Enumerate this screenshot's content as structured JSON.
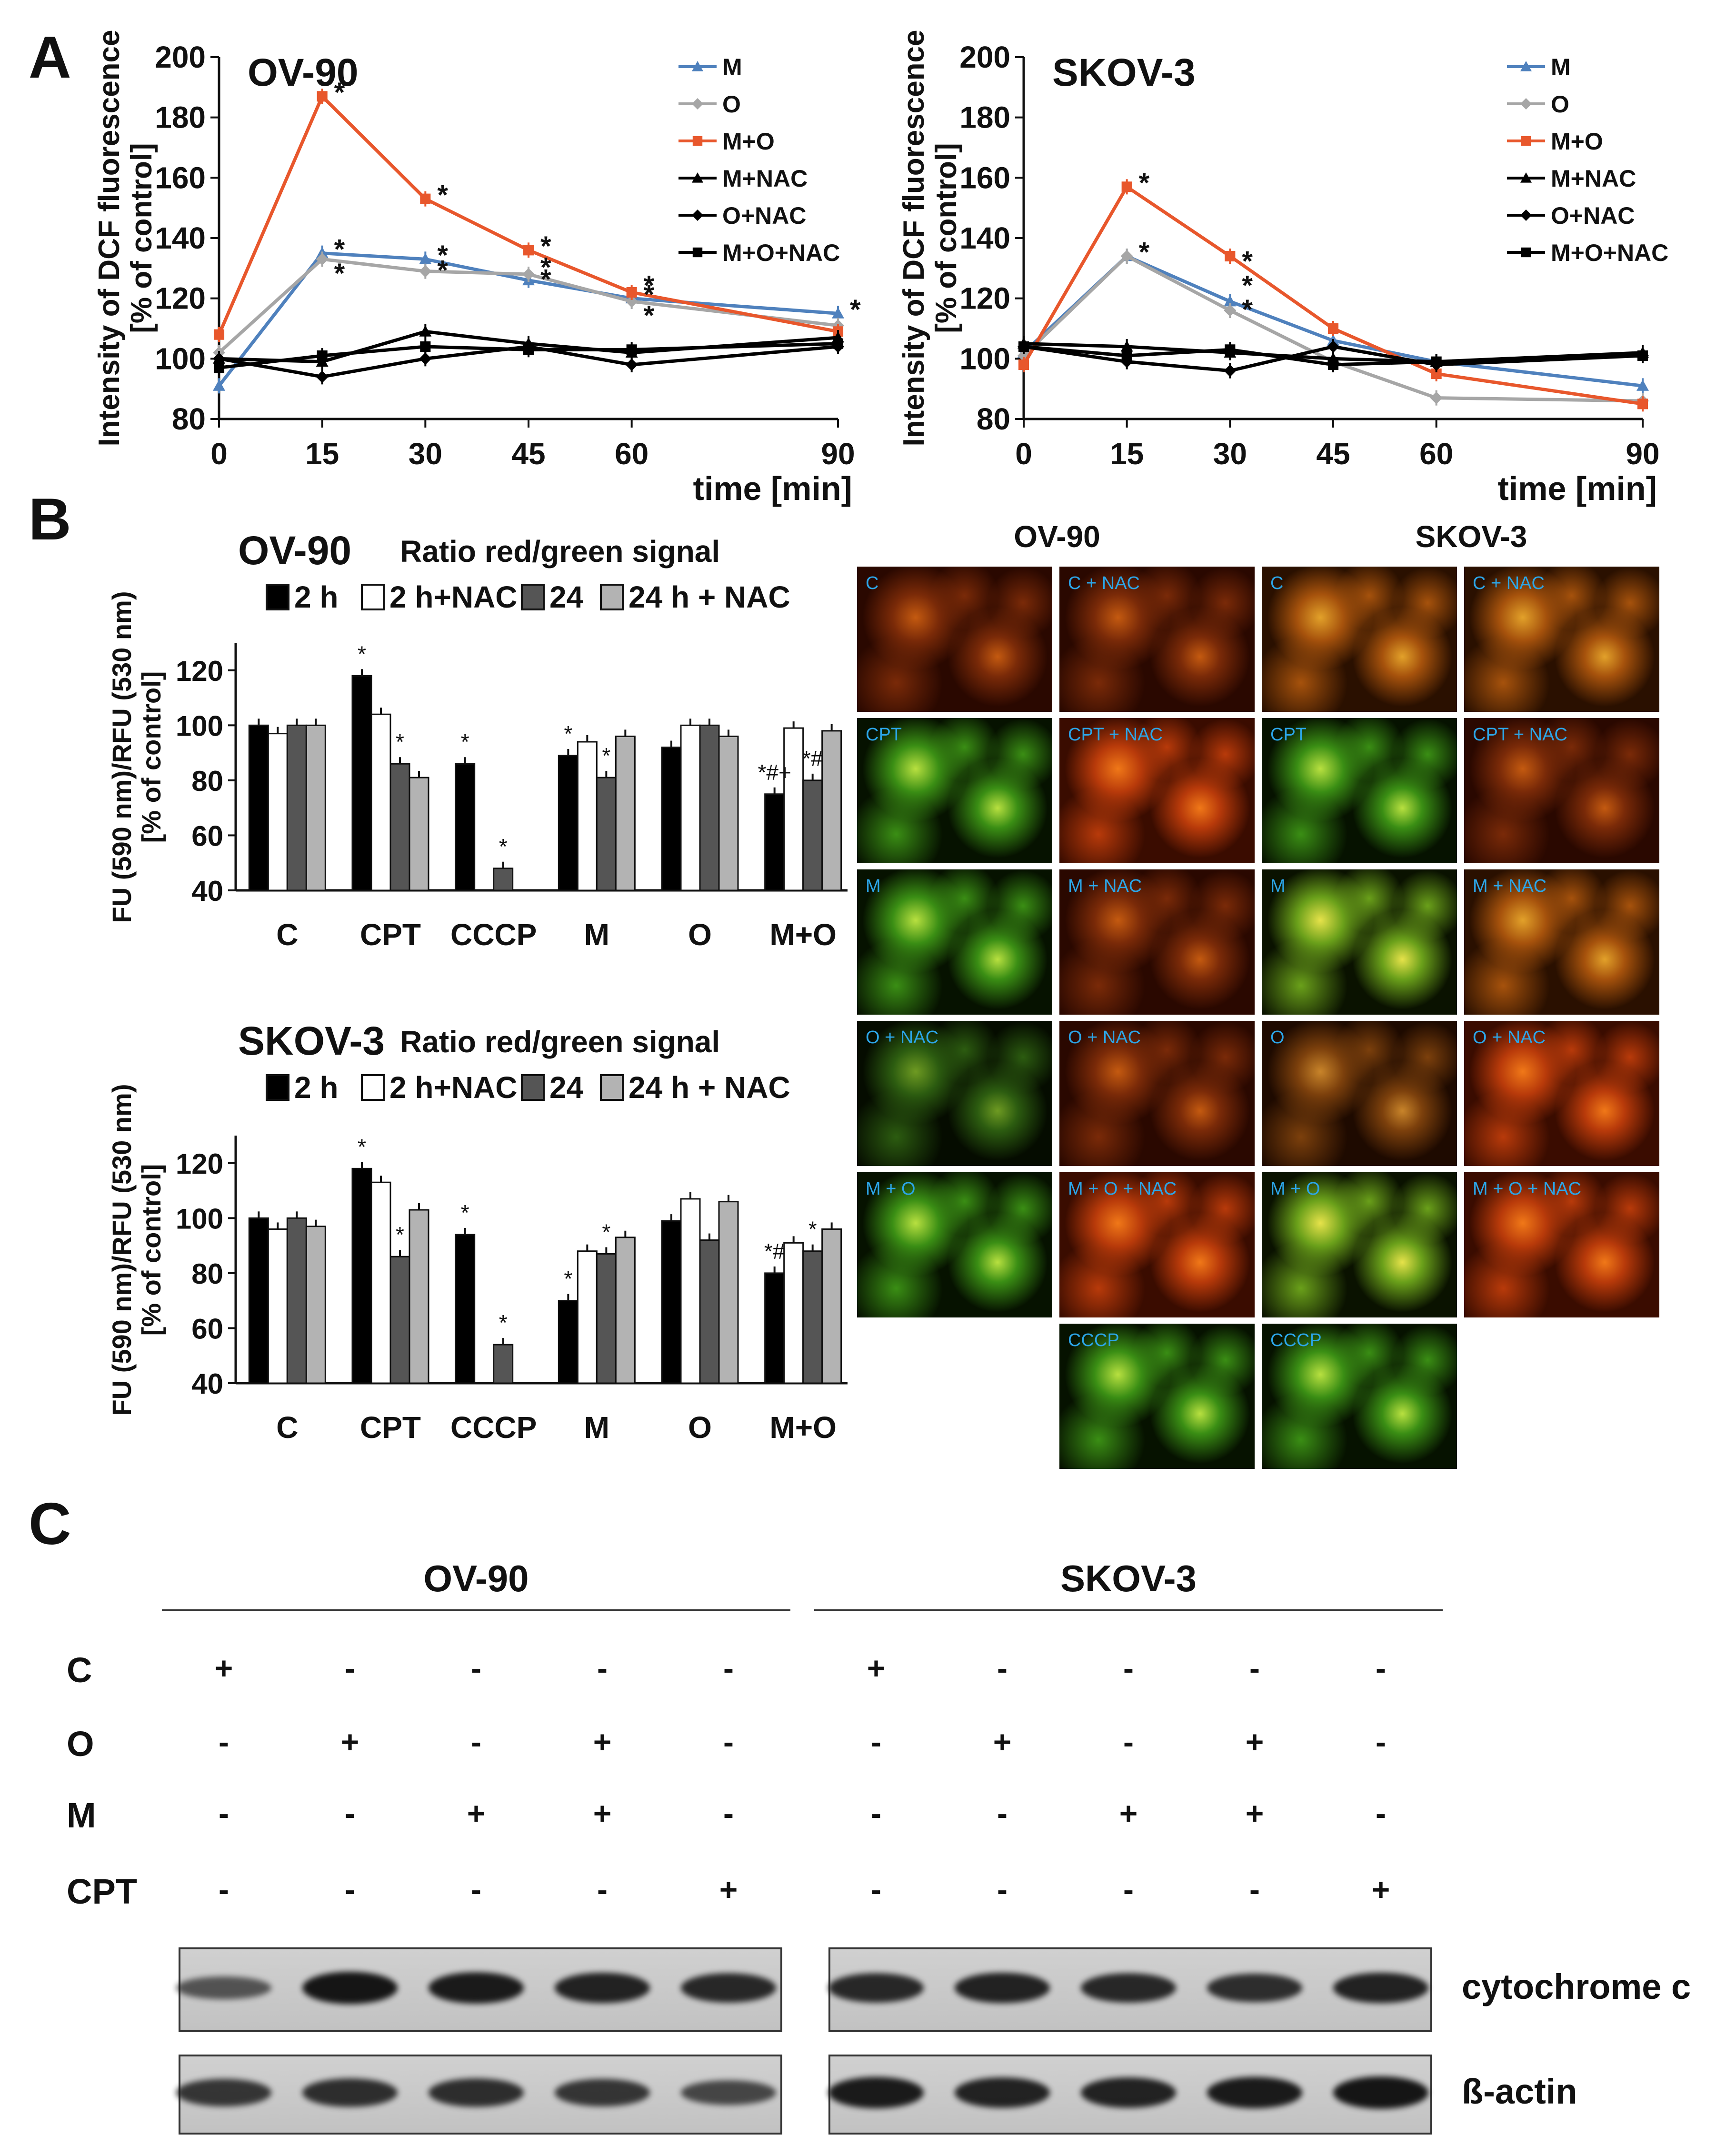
{
  "panels": {
    "a": "A",
    "b": "B",
    "c": "C"
  },
  "colors": {
    "M": "#4f81bd",
    "O": "#a6a6a6",
    "MO": "#e8572c",
    "black": "#000000",
    "dark": "#555555",
    "light": "#b3b3b3",
    "caption": "#2ca6e8"
  },
  "chart_data": [
    {
      "id": "A-OV90",
      "type": "line",
      "title": "OV-90",
      "xlabel": "time [min]",
      "ylabel": "Intensity of DCF fluorescence [% of control]",
      "ylabel_lines": [
        "Intensity of DCF fluorescence",
        "[% of control]"
      ],
      "x": [
        0,
        15,
        30,
        45,
        60,
        90
      ],
      "xticks": [
        "0",
        "15",
        "30",
        "45",
        "60",
        "90"
      ],
      "ylim": [
        80,
        200
      ],
      "yticks": [
        "80",
        "100",
        "120",
        "140",
        "160",
        "180",
        "200"
      ],
      "legend_position": "top-right",
      "series": [
        {
          "name": "M",
          "color": "#4f81bd",
          "marker": "triangle",
          "values": [
            91,
            135,
            133,
            126,
            120,
            115
          ]
        },
        {
          "name": "O",
          "color": "#a6a6a6",
          "marker": "diamond",
          "values": [
            102,
            133,
            129,
            128,
            119,
            111
          ]
        },
        {
          "name": "M+O",
          "color": "#e8572c",
          "marker": "square",
          "values": [
            108,
            187,
            153,
            136,
            122,
            109
          ]
        },
        {
          "name": "M+NAC",
          "color": "#000000",
          "marker": "triangle",
          "values": [
            100,
            99,
            109,
            105,
            102,
            107
          ]
        },
        {
          "name": "O+NAC",
          "color": "#000000",
          "marker": "diamond",
          "values": [
            100,
            94,
            100,
            104,
            98,
            104
          ]
        },
        {
          "name": "M+O+NAC",
          "color": "#000000",
          "marker": "square",
          "values": [
            97,
            101,
            104,
            103,
            103,
            105
          ]
        }
      ],
      "annotations": [
        {
          "x": 15,
          "y": 188,
          "text": "*"
        },
        {
          "x": 15,
          "y": 136,
          "text": "*"
        },
        {
          "x": 15,
          "y": 128,
          "text": "*"
        },
        {
          "x": 30,
          "y": 154,
          "text": "*"
        },
        {
          "x": 30,
          "y": 134,
          "text": "*"
        },
        {
          "x": 30,
          "y": 129,
          "text": "*"
        },
        {
          "x": 45,
          "y": 137,
          "text": "*"
        },
        {
          "x": 45,
          "y": 130,
          "text": "*"
        },
        {
          "x": 45,
          "y": 126,
          "text": "*"
        },
        {
          "x": 60,
          "y": 124,
          "text": "*"
        },
        {
          "x": 60,
          "y": 121,
          "text": "*"
        },
        {
          "x": 60,
          "y": 114,
          "text": "*"
        },
        {
          "x": 90,
          "y": 116,
          "text": "*"
        }
      ]
    },
    {
      "id": "A-SKOV3",
      "type": "line",
      "title": "SKOV-3",
      "xlabel": "time [min]",
      "ylabel": "Intensity of DCF fluorescence [% of control]",
      "ylabel_lines": [
        "Intensity of DCF fluorescence",
        "[% of control]"
      ],
      "x": [
        0,
        15,
        30,
        45,
        60,
        90
      ],
      "xticks": [
        "0",
        "15",
        "30",
        "45",
        "60",
        "90"
      ],
      "ylim": [
        80,
        200
      ],
      "yticks": [
        "80",
        "100",
        "120",
        "140",
        "160",
        "180",
        "200"
      ],
      "legend_position": "top-right",
      "series": [
        {
          "name": "M",
          "color": "#4f81bd",
          "marker": "triangle",
          "values": [
            102,
            134,
            119,
            106,
            99,
            91
          ]
        },
        {
          "name": "O",
          "color": "#a6a6a6",
          "marker": "diamond",
          "values": [
            101,
            134,
            116,
            99,
            87,
            86
          ]
        },
        {
          "name": "M+O",
          "color": "#e8572c",
          "marker": "square",
          "values": [
            98,
            157,
            134,
            110,
            95,
            85
          ]
        },
        {
          "name": "M+NAC",
          "color": "#000000",
          "marker": "triangle",
          "values": [
            105,
            104,
            102,
            100,
            99,
            102
          ]
        },
        {
          "name": "O+NAC",
          "color": "#000000",
          "marker": "diamond",
          "values": [
            104,
            99,
            96,
            104,
            98,
            101
          ]
        },
        {
          "name": "M+O+NAC",
          "color": "#000000",
          "marker": "square",
          "values": [
            104,
            101,
            103,
            98,
            99,
            101
          ]
        }
      ],
      "annotations": [
        {
          "x": 15,
          "y": 158,
          "text": "*"
        },
        {
          "x": 15,
          "y": 135,
          "text": "*"
        },
        {
          "x": 30,
          "y": 132,
          "text": "*"
        },
        {
          "x": 30,
          "y": 116,
          "text": "*"
        },
        {
          "x": 30,
          "y": 124,
          "text": "*"
        }
      ]
    },
    {
      "id": "B-OV90",
      "type": "bar",
      "title": "OV-90",
      "subtitle": "Ratio red/green signal",
      "ylabel": "FU (590 nm)/RFU (530 nm) [% of control]",
      "ylabel_lines": [
        "FU (590 nm)/RFU (530 nm)",
        "[% of control]"
      ],
      "categories": [
        "C",
        "CPT",
        "CCCP",
        "M",
        "O",
        "M+O"
      ],
      "ylim": [
        40,
        130
      ],
      "yticks": [
        "40",
        "60",
        "80",
        "100",
        "120"
      ],
      "legend_position": "top",
      "series": [
        {
          "name": "2 h",
          "color": "#000000",
          "values": [
            100,
            118,
            86,
            89,
            92,
            75
          ]
        },
        {
          "name": "2 h+NAC",
          "color": "#ffffff",
          "values": [
            97,
            104,
            null,
            94,
            100,
            99
          ]
        },
        {
          "name": "24",
          "color": "#555555",
          "values": [
            100,
            86,
            48,
            81,
            100,
            80
          ]
        },
        {
          "name": "24 h + NAC",
          "color": "#b3b3b3",
          "values": [
            100,
            81,
            null,
            96,
            96,
            98
          ]
        }
      ],
      "annotations": [
        {
          "category": "CPT",
          "series": 0,
          "text": "*"
        },
        {
          "category": "CPT",
          "series": 2,
          "text": "*"
        },
        {
          "category": "CCCP",
          "series": 0,
          "text": "*"
        },
        {
          "category": "CCCP",
          "series": 2,
          "text": "*"
        },
        {
          "category": "M",
          "series": 0,
          "text": "*"
        },
        {
          "category": "M",
          "series": 2,
          "text": "*"
        },
        {
          "category": "M+O",
          "series": 0,
          "text": "*#+"
        },
        {
          "category": "M+O",
          "series": 2,
          "text": "*#"
        }
      ]
    },
    {
      "id": "B-SKOV3",
      "type": "bar",
      "title": "SKOV-3",
      "subtitle": "Ratio red/green signal",
      "ylabel": "FU (590 nm)/RFU (530 nm) [% of control]",
      "ylabel_lines": [
        "FU (590 nm)/RFU (530 nm)",
        "[% of control]"
      ],
      "categories": [
        "C",
        "CPT",
        "CCCP",
        "M",
        "O",
        "M+O"
      ],
      "ylim": [
        40,
        130
      ],
      "yticks": [
        "40",
        "60",
        "80",
        "100",
        "120"
      ],
      "legend_position": "top",
      "series": [
        {
          "name": "2 h",
          "color": "#000000",
          "values": [
            100,
            118,
            94,
            70,
            99,
            80
          ]
        },
        {
          "name": "2 h+NAC",
          "color": "#ffffff",
          "values": [
            96,
            113,
            null,
            88,
            107,
            91
          ]
        },
        {
          "name": "24",
          "color": "#555555",
          "values": [
            100,
            86,
            54,
            87,
            92,
            88
          ]
        },
        {
          "name": "24 h + NAC",
          "color": "#b3b3b3",
          "values": [
            97,
            103,
            null,
            93,
            106,
            96
          ]
        }
      ],
      "annotations": [
        {
          "category": "CPT",
          "series": 0,
          "text": "*"
        },
        {
          "category": "CPT",
          "series": 2,
          "text": "*"
        },
        {
          "category": "CCCP",
          "series": 0,
          "text": "*"
        },
        {
          "category": "CCCP",
          "series": 2,
          "text": "*"
        },
        {
          "category": "M",
          "series": 0,
          "text": "*"
        },
        {
          "category": "M",
          "series": 2,
          "text": "*"
        },
        {
          "category": "M+O",
          "series": 0,
          "text": "*#"
        },
        {
          "category": "M+O",
          "series": 2,
          "text": "*"
        }
      ]
    }
  ],
  "micrographs": {
    "headers": [
      "OV-90",
      "SKOV-3"
    ],
    "tiles": [
      {
        "caption": "C",
        "row": 0,
        "col": 0,
        "tone": "red-dim"
      },
      {
        "caption": "C + NAC",
        "row": 0,
        "col": 1,
        "tone": "red-dim"
      },
      {
        "caption": "C",
        "row": 0,
        "col": 2,
        "tone": "orange"
      },
      {
        "caption": "C + NAC",
        "row": 0,
        "col": 3,
        "tone": "orange"
      },
      {
        "caption": "CPT",
        "row": 1,
        "col": 0,
        "tone": "green"
      },
      {
        "caption": "CPT + NAC",
        "row": 1,
        "col": 1,
        "tone": "red"
      },
      {
        "caption": "CPT",
        "row": 1,
        "col": 2,
        "tone": "green"
      },
      {
        "caption": "CPT + NAC",
        "row": 1,
        "col": 3,
        "tone": "red-dim"
      },
      {
        "caption": "M",
        "row": 2,
        "col": 0,
        "tone": "green"
      },
      {
        "caption": "M + NAC",
        "row": 2,
        "col": 1,
        "tone": "red-dim"
      },
      {
        "caption": "M",
        "row": 2,
        "col": 2,
        "tone": "yellow"
      },
      {
        "caption": "M + NAC",
        "row": 2,
        "col": 3,
        "tone": "orange"
      },
      {
        "caption": "O + NAC",
        "row": 3,
        "col": 0,
        "tone": "green-dim"
      },
      {
        "caption": "O + NAC",
        "row": 3,
        "col": 1,
        "tone": "red-dim"
      },
      {
        "caption": "O",
        "row": 3,
        "col": 2,
        "tone": "orange-dim"
      },
      {
        "caption": "O + NAC",
        "row": 3,
        "col": 3,
        "tone": "red"
      },
      {
        "caption": "M + O",
        "row": 4,
        "col": 0,
        "tone": "green"
      },
      {
        "caption": "M + O + NAC",
        "row": 4,
        "col": 1,
        "tone": "red"
      },
      {
        "caption": "M + O",
        "row": 4,
        "col": 2,
        "tone": "yellow"
      },
      {
        "caption": "M + O + NAC",
        "row": 4,
        "col": 3,
        "tone": "red"
      },
      {
        "caption": "CCCP",
        "row": 5,
        "col": 1,
        "tone": "green"
      },
      {
        "caption": "CCCP",
        "row": 5,
        "col": 2,
        "tone": "green"
      }
    ]
  },
  "western": {
    "cell_lines": [
      "OV-90",
      "SKOV-3"
    ],
    "rows": [
      {
        "label": "C",
        "signs": [
          "+",
          "-",
          "-",
          "-",
          "-",
          "+",
          "-",
          "-",
          "-",
          "-"
        ]
      },
      {
        "label": "O",
        "signs": [
          "-",
          "+",
          "-",
          "+",
          "-",
          "-",
          "+",
          "-",
          "+",
          "-"
        ]
      },
      {
        "label": "M",
        "signs": [
          "-",
          "-",
          "+",
          "+",
          "-",
          "-",
          "-",
          "+",
          "+",
          "-"
        ]
      },
      {
        "label": "CPT",
        "signs": [
          "-",
          "-",
          "-",
          "-",
          "+",
          "-",
          "-",
          "-",
          "-",
          "+"
        ]
      }
    ],
    "blots": [
      {
        "label": "cytochrome c",
        "intensity": [
          0.45,
          0.95,
          0.9,
          0.85,
          0.8,
          0.8,
          0.85,
          0.8,
          0.75,
          0.85
        ]
      },
      {
        "label": "ß-actin",
        "intensity": [
          0.7,
          0.75,
          0.75,
          0.7,
          0.55,
          0.9,
          0.85,
          0.85,
          0.9,
          0.95
        ]
      }
    ]
  }
}
